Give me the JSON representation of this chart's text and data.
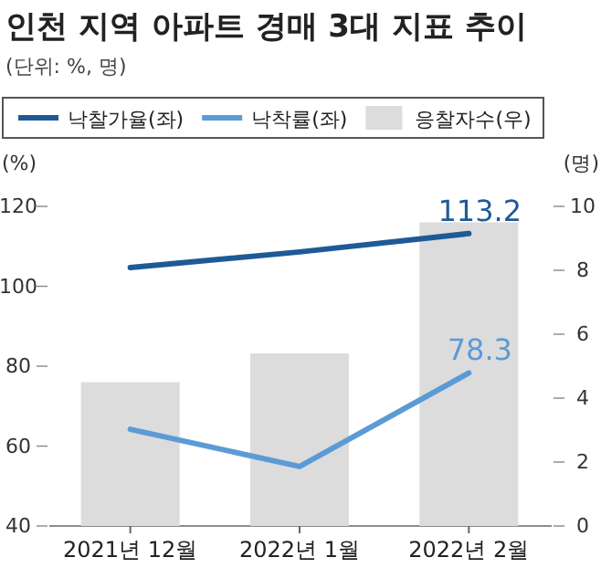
{
  "chart_data": {
    "type": "bar",
    "title": "인천 지역 아파트 경매 3대 지표 추이",
    "subtitle": "(단위: %, 명)",
    "ylabel": "(%)",
    "y2label": "(명)",
    "categories": [
      "2021년 12월",
      "2022년 1월",
      "2022년 2월"
    ],
    "series": [
      {
        "name": "낙찰가율(좌)",
        "type": "line",
        "axis": "y",
        "color": "#1f5a96",
        "values": [
          104.7,
          108.6,
          113.2
        ],
        "value_labels": [
          null,
          null,
          "113.2"
        ]
      },
      {
        "name": "낙착률(좌)",
        "type": "line",
        "axis": "y",
        "color": "#5b9bd5",
        "values": [
          64.2,
          54.9,
          78.3
        ],
        "value_labels": [
          null,
          null,
          "78.3"
        ]
      },
      {
        "name": "응찰자수(우)",
        "axis": "y2",
        "color": "#dcdcdc",
        "values": [
          4.5,
          5.4,
          9.5
        ]
      }
    ],
    "ylim": [
      40,
      120
    ],
    "yticks": [
      40,
      60,
      80,
      100,
      120
    ],
    "y2lim": [
      0,
      10
    ],
    "y2ticks": [
      0,
      2,
      4,
      6,
      8,
      10
    ],
    "legend": "top left",
    "grid": false
  }
}
